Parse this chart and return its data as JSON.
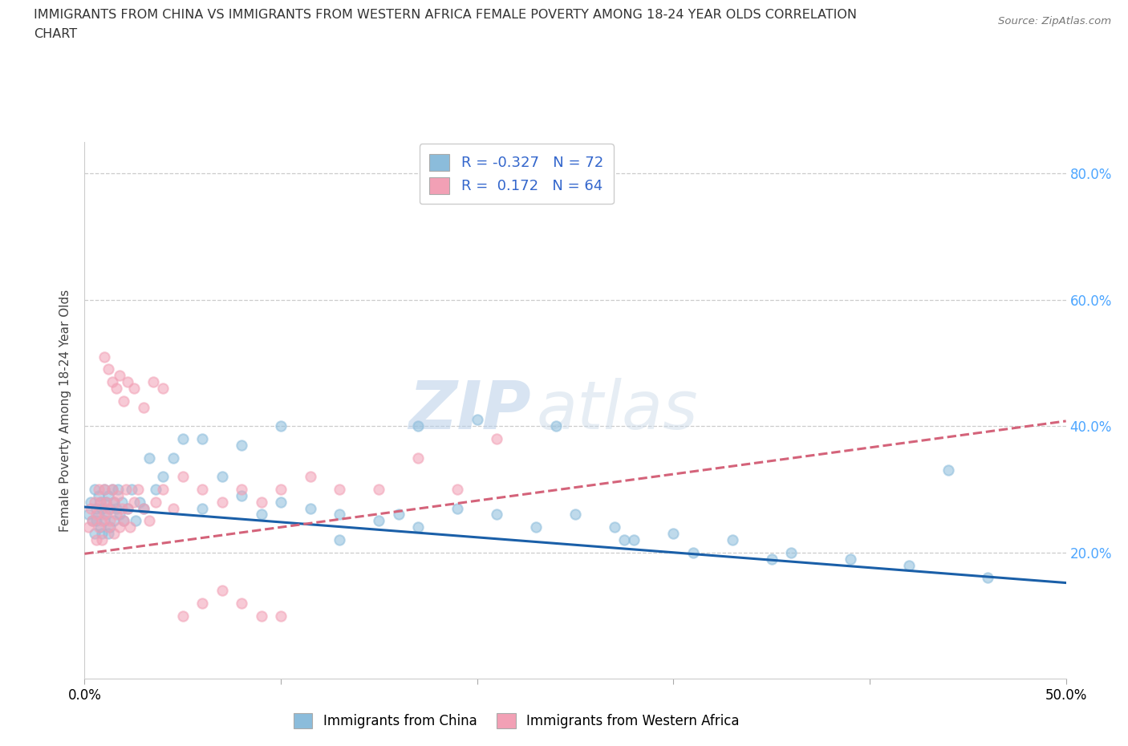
{
  "title_line1": "IMMIGRANTS FROM CHINA VS IMMIGRANTS FROM WESTERN AFRICA FEMALE POVERTY AMONG 18-24 YEAR OLDS CORRELATION",
  "title_line2": "CHART",
  "source": "Source: ZipAtlas.com",
  "ylabel": "Female Poverty Among 18-24 Year Olds",
  "xlim": [
    0.0,
    0.5
  ],
  "ylim": [
    0.0,
    0.85
  ],
  "yticks": [
    0.2,
    0.4,
    0.6,
    0.8
  ],
  "ytick_labels": [
    "20.0%",
    "40.0%",
    "60.0%",
    "80.0%"
  ],
  "R_china": -0.327,
  "N_china": 72,
  "R_wafrica": 0.172,
  "N_wafrica": 64,
  "legend_label_china": "Immigrants from China",
  "legend_label_wafrica": "Immigrants from Western Africa",
  "color_china": "#8bbcdb",
  "color_wafrica": "#f2a0b5",
  "line_color_china": "#1a5fa8",
  "line_color_wafrica": "#d4637a",
  "watermark": "ZIPatlas",
  "china_intercept": 0.272,
  "china_slope": -0.24,
  "wafrica_intercept": 0.198,
  "wafrica_slope": 0.42,
  "china_x": [
    0.002,
    0.003,
    0.004,
    0.005,
    0.005,
    0.006,
    0.006,
    0.007,
    0.007,
    0.008,
    0.008,
    0.009,
    0.009,
    0.01,
    0.01,
    0.011,
    0.011,
    0.012,
    0.012,
    0.013,
    0.013,
    0.014,
    0.015,
    0.015,
    0.016,
    0.017,
    0.018,
    0.019,
    0.02,
    0.022,
    0.024,
    0.026,
    0.028,
    0.03,
    0.033,
    0.036,
    0.04,
    0.045,
    0.05,
    0.06,
    0.07,
    0.08,
    0.09,
    0.1,
    0.115,
    0.13,
    0.15,
    0.17,
    0.19,
    0.21,
    0.23,
    0.25,
    0.275,
    0.3,
    0.33,
    0.36,
    0.39,
    0.42,
    0.17,
    0.2,
    0.24,
    0.06,
    0.08,
    0.1,
    0.13,
    0.16,
    0.27,
    0.28,
    0.31,
    0.35,
    0.44,
    0.46
  ],
  "china_y": [
    0.26,
    0.28,
    0.25,
    0.3,
    0.23,
    0.27,
    0.25,
    0.29,
    0.26,
    0.28,
    0.24,
    0.27,
    0.23,
    0.3,
    0.25,
    0.28,
    0.26,
    0.29,
    0.23,
    0.27,
    0.24,
    0.3,
    0.28,
    0.25,
    0.27,
    0.3,
    0.26,
    0.28,
    0.25,
    0.27,
    0.3,
    0.25,
    0.28,
    0.27,
    0.35,
    0.3,
    0.32,
    0.35,
    0.38,
    0.27,
    0.32,
    0.29,
    0.26,
    0.28,
    0.27,
    0.26,
    0.25,
    0.24,
    0.27,
    0.26,
    0.24,
    0.26,
    0.22,
    0.23,
    0.22,
    0.2,
    0.19,
    0.18,
    0.4,
    0.41,
    0.4,
    0.38,
    0.37,
    0.4,
    0.22,
    0.26,
    0.24,
    0.22,
    0.2,
    0.19,
    0.33,
    0.16
  ],
  "wafrica_x": [
    0.002,
    0.003,
    0.004,
    0.005,
    0.006,
    0.006,
    0.007,
    0.007,
    0.008,
    0.009,
    0.009,
    0.01,
    0.01,
    0.011,
    0.012,
    0.012,
    0.013,
    0.014,
    0.015,
    0.015,
    0.016,
    0.017,
    0.018,
    0.019,
    0.02,
    0.021,
    0.022,
    0.023,
    0.025,
    0.027,
    0.03,
    0.033,
    0.036,
    0.04,
    0.045,
    0.05,
    0.06,
    0.07,
    0.08,
    0.09,
    0.1,
    0.115,
    0.13,
    0.15,
    0.17,
    0.19,
    0.21,
    0.01,
    0.012,
    0.014,
    0.016,
    0.018,
    0.02,
    0.022,
    0.025,
    0.03,
    0.035,
    0.04,
    0.05,
    0.06,
    0.07,
    0.08,
    0.09,
    0.1
  ],
  "wafrica_y": [
    0.24,
    0.27,
    0.25,
    0.28,
    0.22,
    0.26,
    0.3,
    0.24,
    0.28,
    0.25,
    0.22,
    0.3,
    0.26,
    0.28,
    0.24,
    0.27,
    0.25,
    0.3,
    0.28,
    0.23,
    0.26,
    0.29,
    0.24,
    0.27,
    0.25,
    0.3,
    0.27,
    0.24,
    0.28,
    0.3,
    0.27,
    0.25,
    0.28,
    0.3,
    0.27,
    0.32,
    0.3,
    0.28,
    0.3,
    0.28,
    0.3,
    0.32,
    0.3,
    0.3,
    0.35,
    0.3,
    0.38,
    0.51,
    0.49,
    0.47,
    0.46,
    0.48,
    0.44,
    0.47,
    0.46,
    0.43,
    0.47,
    0.46,
    0.1,
    0.12,
    0.14,
    0.12,
    0.1,
    0.1
  ]
}
